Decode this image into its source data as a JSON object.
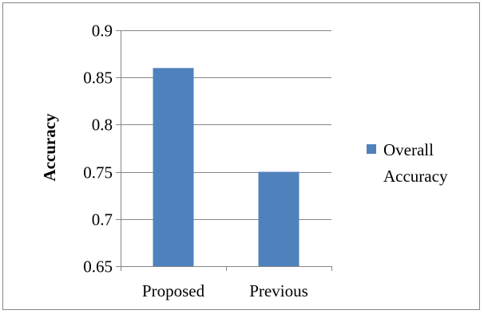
{
  "chart_data": {
    "type": "bar",
    "title": "",
    "xlabel": "",
    "ylabel": "Accuracy",
    "categories": [
      "Proposed",
      "Previous"
    ],
    "series": [
      {
        "name": "Overall Accuracy",
        "values": [
          0.86,
          0.75
        ],
        "color": "#4f81bd"
      }
    ],
    "ylim": [
      0.65,
      0.9
    ],
    "yticks": [
      "0.65",
      "0.7",
      "0.75",
      "0.8",
      "0.85",
      "0.9"
    ],
    "grid": true,
    "legend": {
      "position": "right",
      "label_lines": [
        "Overall",
        "Accuracy"
      ]
    }
  }
}
